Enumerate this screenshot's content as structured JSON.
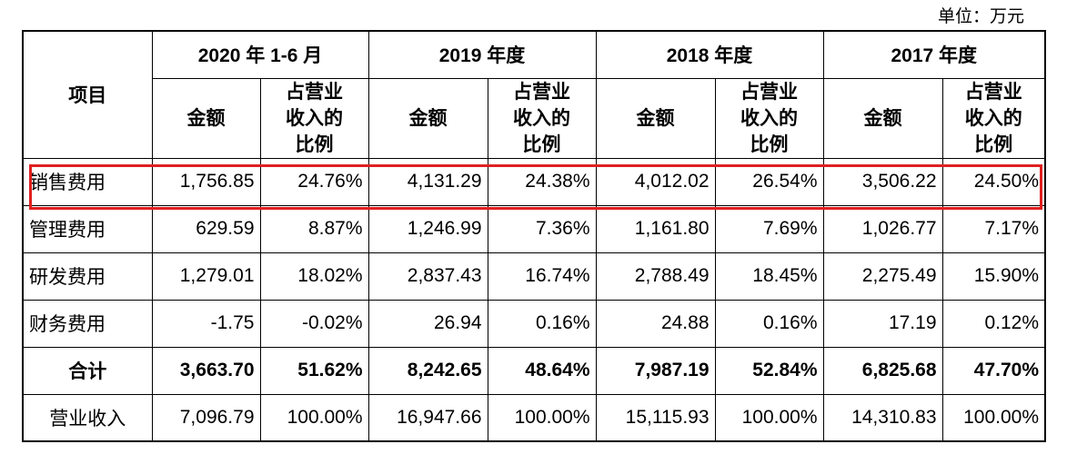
{
  "unit": "单位：万元",
  "header": {
    "item": "项目",
    "periods": [
      "2020 年 1-6 月",
      "2019 年度",
      "2018 年度",
      "2017 年度"
    ],
    "amount": "金额",
    "ratio_lines": [
      "占营业",
      "收入的",
      "比例"
    ]
  },
  "rows": [
    {
      "label": "销售费用",
      "cells": [
        "1,756.85",
        "24.76%",
        "4,131.29",
        "24.38%",
        "4,012.02",
        "26.54%",
        "3,506.22",
        "24.50%"
      ]
    },
    {
      "label": "管理费用",
      "cells": [
        "629.59",
        "8.87%",
        "1,246.99",
        "7.36%",
        "1,161.80",
        "7.69%",
        "1,026.77",
        "7.17%"
      ]
    },
    {
      "label": "研发费用",
      "cells": [
        "1,279.01",
        "18.02%",
        "2,837.43",
        "16.74%",
        "2,788.49",
        "18.45%",
        "2,275.49",
        "15.90%"
      ]
    },
    {
      "label": "财务费用",
      "cells": [
        "-1.75",
        "-0.02%",
        "26.94",
        "0.16%",
        "24.88",
        "0.16%",
        "17.19",
        "0.12%"
      ]
    },
    {
      "label": "合计",
      "cells": [
        "3,663.70",
        "51.62%",
        "8,242.65",
        "48.64%",
        "7,987.19",
        "52.84%",
        "6,825.68",
        "47.70%"
      ]
    },
    {
      "label": "营业收入",
      "cells": [
        "7,096.79",
        "100.00%",
        "16,947.66",
        "100.00%",
        "15,115.93",
        "100.00%",
        "14,310.83",
        "100.00%"
      ]
    }
  ],
  "highlight_color": "#e02020"
}
